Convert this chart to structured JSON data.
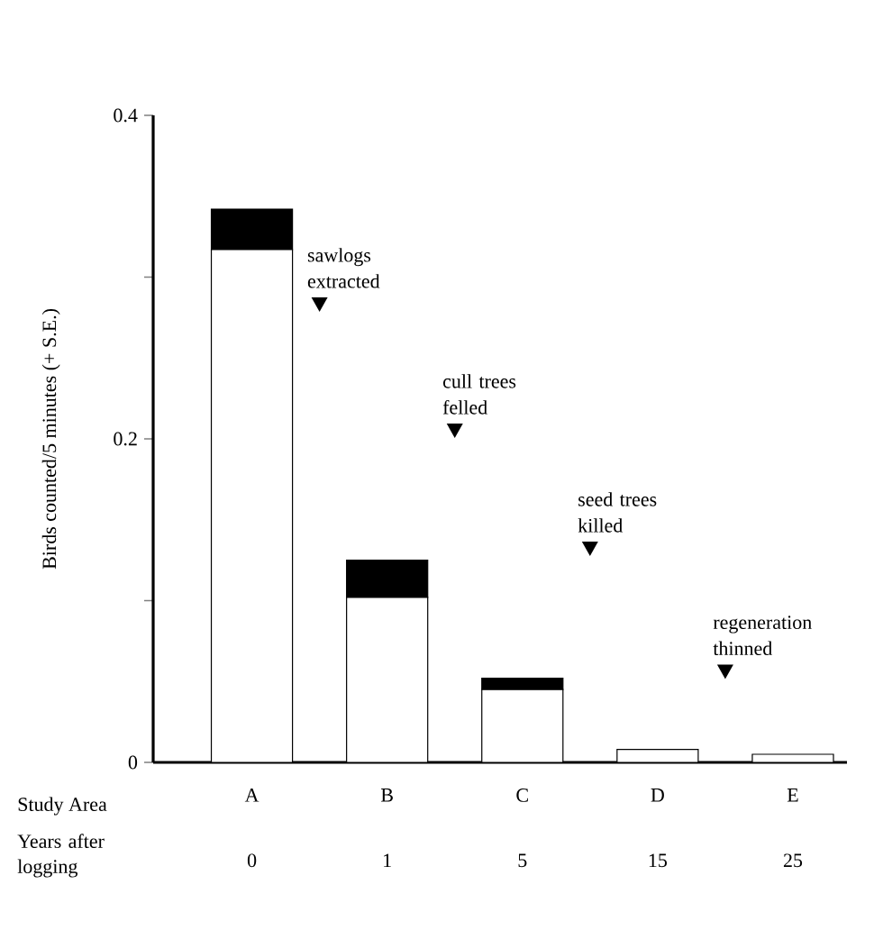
{
  "chart_data": {
    "type": "bar",
    "stacked": true,
    "ylabel": "Birds counted/5 minutes (+ S.E.)",
    "xlabel": "Study Area",
    "categories": [
      "A",
      "B",
      "C",
      "D",
      "E"
    ],
    "series": [
      {
        "color": "#ffffff",
        "values": [
          0.317,
          0.102,
          0.045,
          0.008,
          0.005
        ]
      },
      {
        "color": "#000000",
        "values": [
          0.025,
          0.023,
          0.007,
          null,
          null
        ]
      }
    ],
    "ylim": [
      0,
      0.4
    ],
    "yticks": [
      0,
      {
        "value": 0.1,
        "label": null
      },
      0.2,
      {
        "value": 0.3,
        "label": null
      },
      0.4
    ],
    "annotations": [
      "sawlogs extracted",
      "cull trees felled",
      "seed trees killed",
      "regeneration thinned",
      "Years after logging",
      "0",
      "1",
      "5",
      "15",
      "25"
    ]
  }
}
